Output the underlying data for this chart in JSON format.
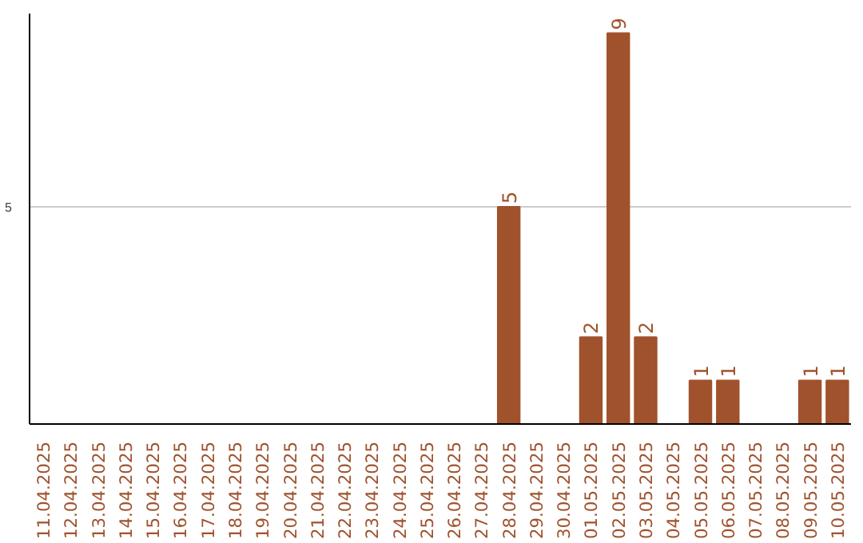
{
  "chart_data": {
    "type": "bar",
    "categories": [
      "11.04.2025",
      "12.04.2025",
      "13.04.2025",
      "14.04.2025",
      "15.04.2025",
      "16.04.2025",
      "17.04.2025",
      "18.04.2025",
      "19.04.2025",
      "20.04.2025",
      "21.04.2025",
      "22.04.2025",
      "23.04.2025",
      "24.04.2025",
      "25.04.2025",
      "26.04.2025",
      "27.04.2025",
      "28.04.2025",
      "29.04.2025",
      "30.04.2025",
      "01.05.2025",
      "02.05.2025",
      "03.05.2025",
      "04.05.2025",
      "05.05.2025",
      "06.05.2025",
      "07.05.2025",
      "08.05.2025",
      "09.05.2025",
      "10.05.2025"
    ],
    "values": [
      null,
      null,
      null,
      null,
      null,
      null,
      null,
      null,
      null,
      null,
      null,
      null,
      null,
      null,
      null,
      null,
      null,
      5,
      null,
      null,
      2,
      9,
      2,
      null,
      1,
      1,
      null,
      null,
      1,
      1
    ],
    "data_labels": true,
    "color": "#a0522d",
    "ylim": [
      0,
      9.45
    ],
    "yticks": [
      5
    ],
    "grid": "y"
  }
}
